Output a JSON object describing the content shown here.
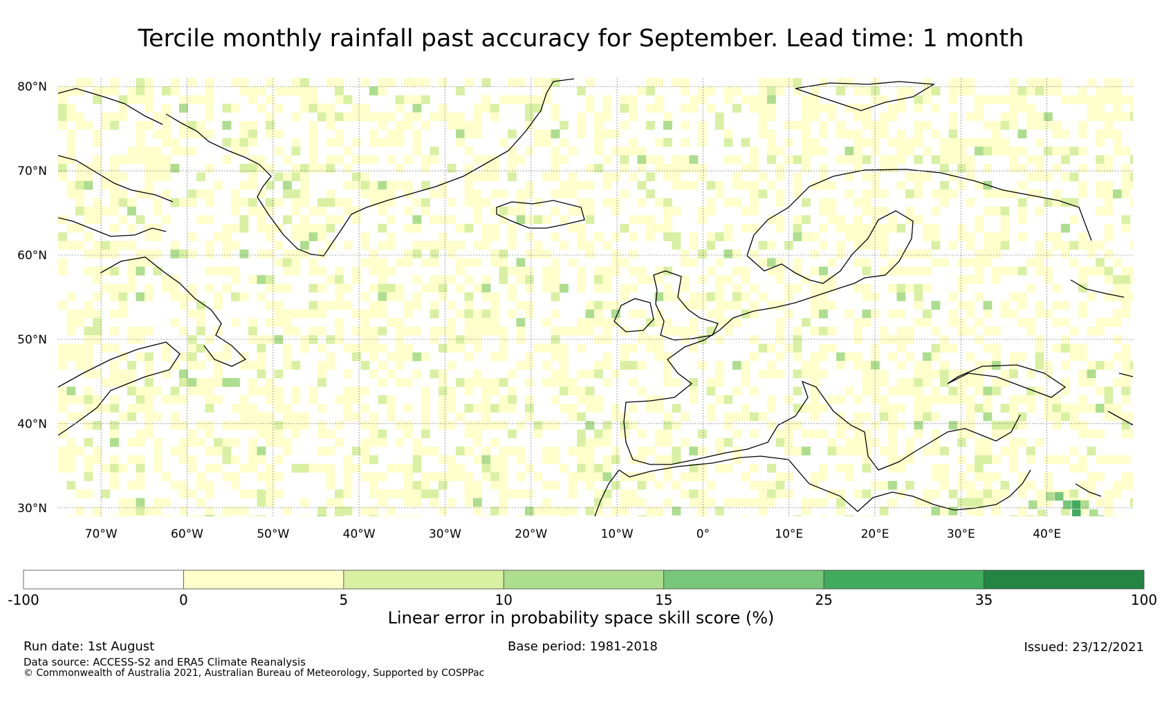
{
  "title": "Tercile monthly rainfall past accuracy for September. Lead time: 1 month",
  "map": {
    "lat_labels": [
      "80°N",
      "70°N",
      "60°N",
      "50°N",
      "40°N",
      "30°N"
    ],
    "lat_values": [
      80,
      70,
      60,
      50,
      40,
      30
    ],
    "lon_labels": [
      "70°W",
      "60°W",
      "50°W",
      "40°W",
      "30°W",
      "20°W",
      "10°W",
      "0°",
      "10°E",
      "20°E",
      "30°E",
      "40°E"
    ],
    "lon_values": [
      -70,
      -60,
      -50,
      -40,
      -30,
      -20,
      -10,
      0,
      10,
      20,
      30,
      40
    ],
    "lon_range": [
      -75,
      50
    ],
    "lat_range": [
      29,
      81
    ]
  },
  "colorbar": {
    "ticks": [
      "-100",
      "0",
      "5",
      "10",
      "15",
      "25",
      "35",
      "100"
    ],
    "colors": [
      "#ffffff",
      "#ffffcc",
      "#d9f0a3",
      "#addd8e",
      "#78c679",
      "#41ab5d",
      "#238443"
    ],
    "label": "Linear error in probability space skill score (%)"
  },
  "footer": {
    "run_date": "Run date: 1st August",
    "base_period": "Base period: 1981-2018",
    "issued": "Issued: 23/12/2021",
    "data_source": "Data source: ACCESS-S2 and ERA5 Climate Reanalysis",
    "copyright": "© Commonwealth of Australia 2021, Australian Bureau of Meteorology, Supported by COSPPac"
  }
}
